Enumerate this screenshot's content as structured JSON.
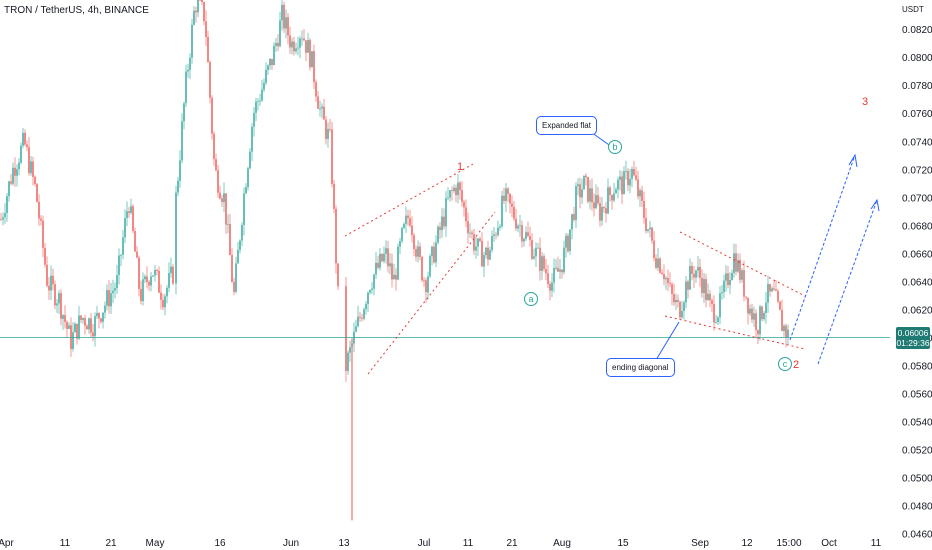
{
  "header": {
    "title": "TRON / TetherUS, 4h, BINANCE"
  },
  "chart_data": {
    "type": "candlestick",
    "title": "TRON / TetherUS, 4h, BINANCE",
    "unit": "USDT",
    "ylim": [
      0.0456,
      0.0838
    ],
    "y_ticks": [
      "0.08200",
      "0.08000",
      "0.07800",
      "0.07600",
      "0.07400",
      "0.07200",
      "0.07000",
      "0.06800",
      "0.06600",
      "0.06400",
      "0.06200",
      "0.06000",
      "0.05800",
      "0.05600",
      "0.05400",
      "0.05200",
      "0.05000",
      "0.04800",
      "0.04600"
    ],
    "x_ticks": [
      "Apr",
      "11",
      "21",
      "May",
      "16",
      "Jun",
      "13",
      "Jul",
      "11",
      "21",
      "Aug",
      "15",
      "Sep",
      "12",
      "15:00",
      "Oct",
      "11"
    ],
    "last_price": {
      "value": "0.06006",
      "countdown": "01:29:36",
      "color": "#1f7a73"
    },
    "price_path": [
      [
        0.0685,
        0.072,
        0.074,
        0.0705,
        0.064,
        0.0628,
        0.0598,
        0.0615,
        0.061,
        0.0625,
        0.064,
        0.07,
        0.063,
        0.065,
        0.063,
        0.065
      ],
      [
        0.07,
        0.078,
        0.084,
        0.083,
        0.072,
        0.07,
        0.063,
        0.07,
        0.076,
        0.078,
        0.08,
        0.083,
        0.081,
        0.082,
        0.08,
        0.076,
        0.074,
        0.06
      ],
      [
        0.058,
        0.06,
        0.062,
        0.064,
        0.065,
        0.066,
        0.064,
        0.067,
        0.069,
        0.066,
        0.064,
        0.066,
        0.068,
        0.07,
        0.071,
        0.069,
        0.067,
        0.066,
        0.066,
        0.068,
        0.07,
        0.069,
        0.068,
        0.067,
        0.066,
        0.065,
        0.064,
        0.065,
        0.067,
        0.07,
        0.071,
        0.07,
        0.069,
        0.07,
        0.071,
        0.071,
        0.072,
        0.07,
        0.068,
        0.066,
        0.065,
        0.063,
        0.062,
        0.064,
        0.065,
        0.064,
        0.062,
        0.062,
        0.064,
        0.066,
        0.064,
        0.062,
        0.061,
        0.063,
        0.063,
        0.061,
        0.06
      ]
    ],
    "annotations": [
      {
        "kind": "wave",
        "text": "1",
        "color": "#e53935"
      },
      {
        "kind": "wave",
        "text": "2",
        "color": "#e53935"
      },
      {
        "kind": "wave",
        "text": "3",
        "color": "#e53935"
      },
      {
        "kind": "wave",
        "text": "a",
        "color": "#26a69a"
      },
      {
        "kind": "wave",
        "text": "b",
        "color": "#26a69a"
      },
      {
        "kind": "wave",
        "text": "c",
        "color": "#26a69a"
      },
      {
        "kind": "callout",
        "text": "Expanded flat"
      },
      {
        "kind": "callout",
        "text": "ending diagonal"
      }
    ],
    "colors": {
      "up": "#26a69a",
      "down": "#ef5350",
      "trend": "#e53935",
      "projection": "#2962ff",
      "price_line": "#26a69a"
    }
  },
  "callouts": {
    "expanded_flat": "Expanded flat",
    "ending_diagonal": "ending diagonal"
  },
  "waves": {
    "one": "1",
    "two": "2",
    "three": "3",
    "a": "a",
    "b": "b",
    "c": "c"
  },
  "axis": {
    "unit": "USDT"
  }
}
